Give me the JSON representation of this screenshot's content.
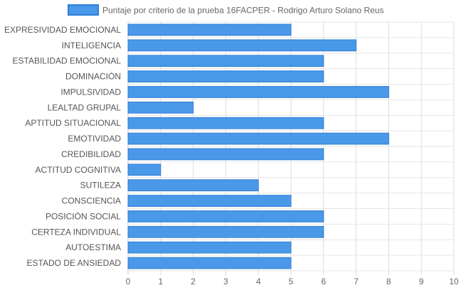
{
  "chart_data": {
    "type": "bar",
    "orientation": "horizontal",
    "title": "",
    "xlabel": "",
    "ylabel": "",
    "xlim": [
      0,
      10
    ],
    "x_ticks": [
      "0",
      "1",
      "2",
      "3",
      "4",
      "5",
      "6",
      "7",
      "8",
      "9",
      "10"
    ],
    "grid": true,
    "legend_position": "top",
    "categories": [
      "EXPRESIVIDAD EMOCIONAL",
      "INTELIGENCIA",
      "ESTABILIDAD EMOCIONAL",
      "DOMINACIÓN",
      "IMPULSIVIDAD",
      "LEALTAD GRUPAL",
      "APTITUD SITUACIONAL",
      "EMOTIVIDAD",
      "CREDIBILIDAD",
      "ACTITUD COGNITIVA",
      "SUTILEZA",
      "CONSCIENCIA",
      "POSICIÓN SOCIAL",
      "CERTEZA INDIVIDUAL",
      "AUTOESTIMA",
      "ESTADO DE ANSIEDAD"
    ],
    "series": [
      {
        "name": "Puntaje por criterio de la prueba 16FACPER - Rodrigo Arturo Solano Reus",
        "color": "#4a98e8",
        "border_color": "#2f7fd6",
        "values": [
          5,
          7,
          6,
          6,
          8,
          2,
          6,
          8,
          6,
          1,
          4,
          5,
          6,
          6,
          5,
          5
        ]
      }
    ]
  }
}
